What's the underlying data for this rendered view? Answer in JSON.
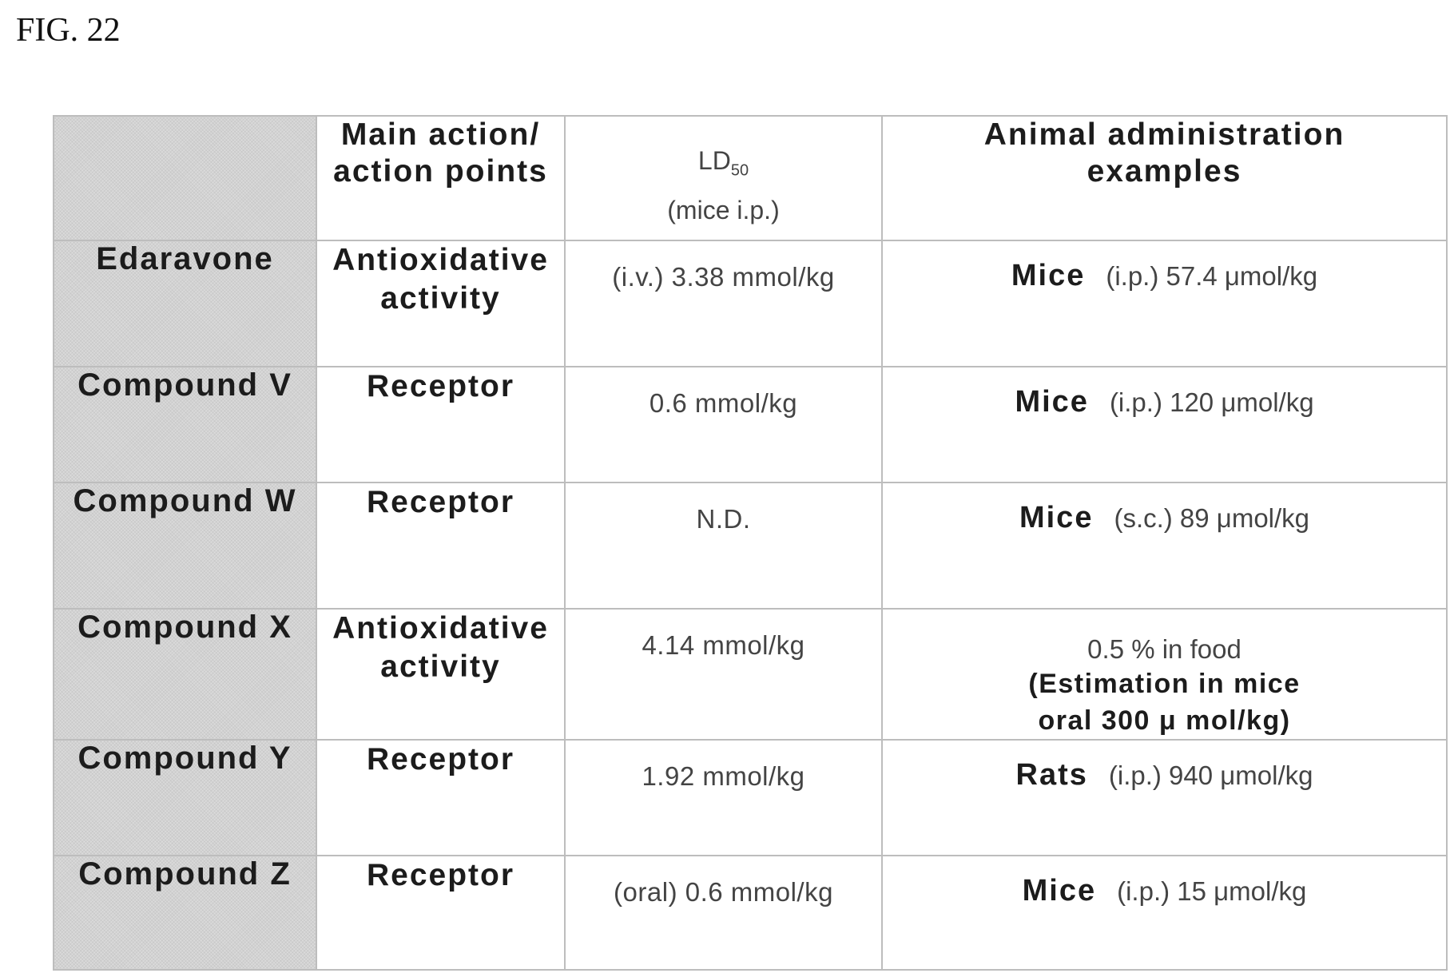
{
  "figure_label": "FIG. 22",
  "header": {
    "col_main_action_line1": "Main action/",
    "col_main_action_line2": "action points",
    "col_ld50_main": "LD",
    "col_ld50_sub": "50",
    "col_ld50_note": "(mice i.p.)",
    "col_animal_line1": "Animal administration",
    "col_animal_line2": "examples"
  },
  "rows": [
    {
      "compound": "Edaravone",
      "action_line1": "Antioxidative",
      "action_line2": "activity",
      "ld50": "(i.v.) 3.38 mmol/kg",
      "admin_species": "Mice",
      "admin_detail": "(i.p.) 57.4 μmol/kg"
    },
    {
      "compound": "Compound V",
      "action_line1": "Receptor",
      "ld50": "0.6 mmol/kg",
      "admin_species": "Mice",
      "admin_detail": "(i.p.) 120 μmol/kg"
    },
    {
      "compound": "Compound W",
      "action_line1": "Receptor",
      "ld50": "N.D.",
      "admin_species": "Mice",
      "admin_detail": "(s.c.)  89 μmol/kg"
    },
    {
      "compound": "Compound X",
      "action_line1": "Antioxidative",
      "action_line2": "activity",
      "ld50": "4.14 mmol/kg",
      "admin_line1": "0.5 % in food",
      "admin_line2": "(Estimation in mice",
      "admin_line3": "oral 300 μ mol/kg)"
    },
    {
      "compound": "Compound Y",
      "action_line1": "Receptor",
      "ld50": "1.92 mmol/kg",
      "admin_species": "Rats",
      "admin_detail": "(i.p.) 940 μmol/kg"
    },
    {
      "compound": "Compound Z",
      "action_line1": "Receptor",
      "ld50": "(oral) 0.6 mmol/kg",
      "admin_species": "Mice",
      "admin_detail": "(i.p.) 15 μmol/kg"
    }
  ]
}
